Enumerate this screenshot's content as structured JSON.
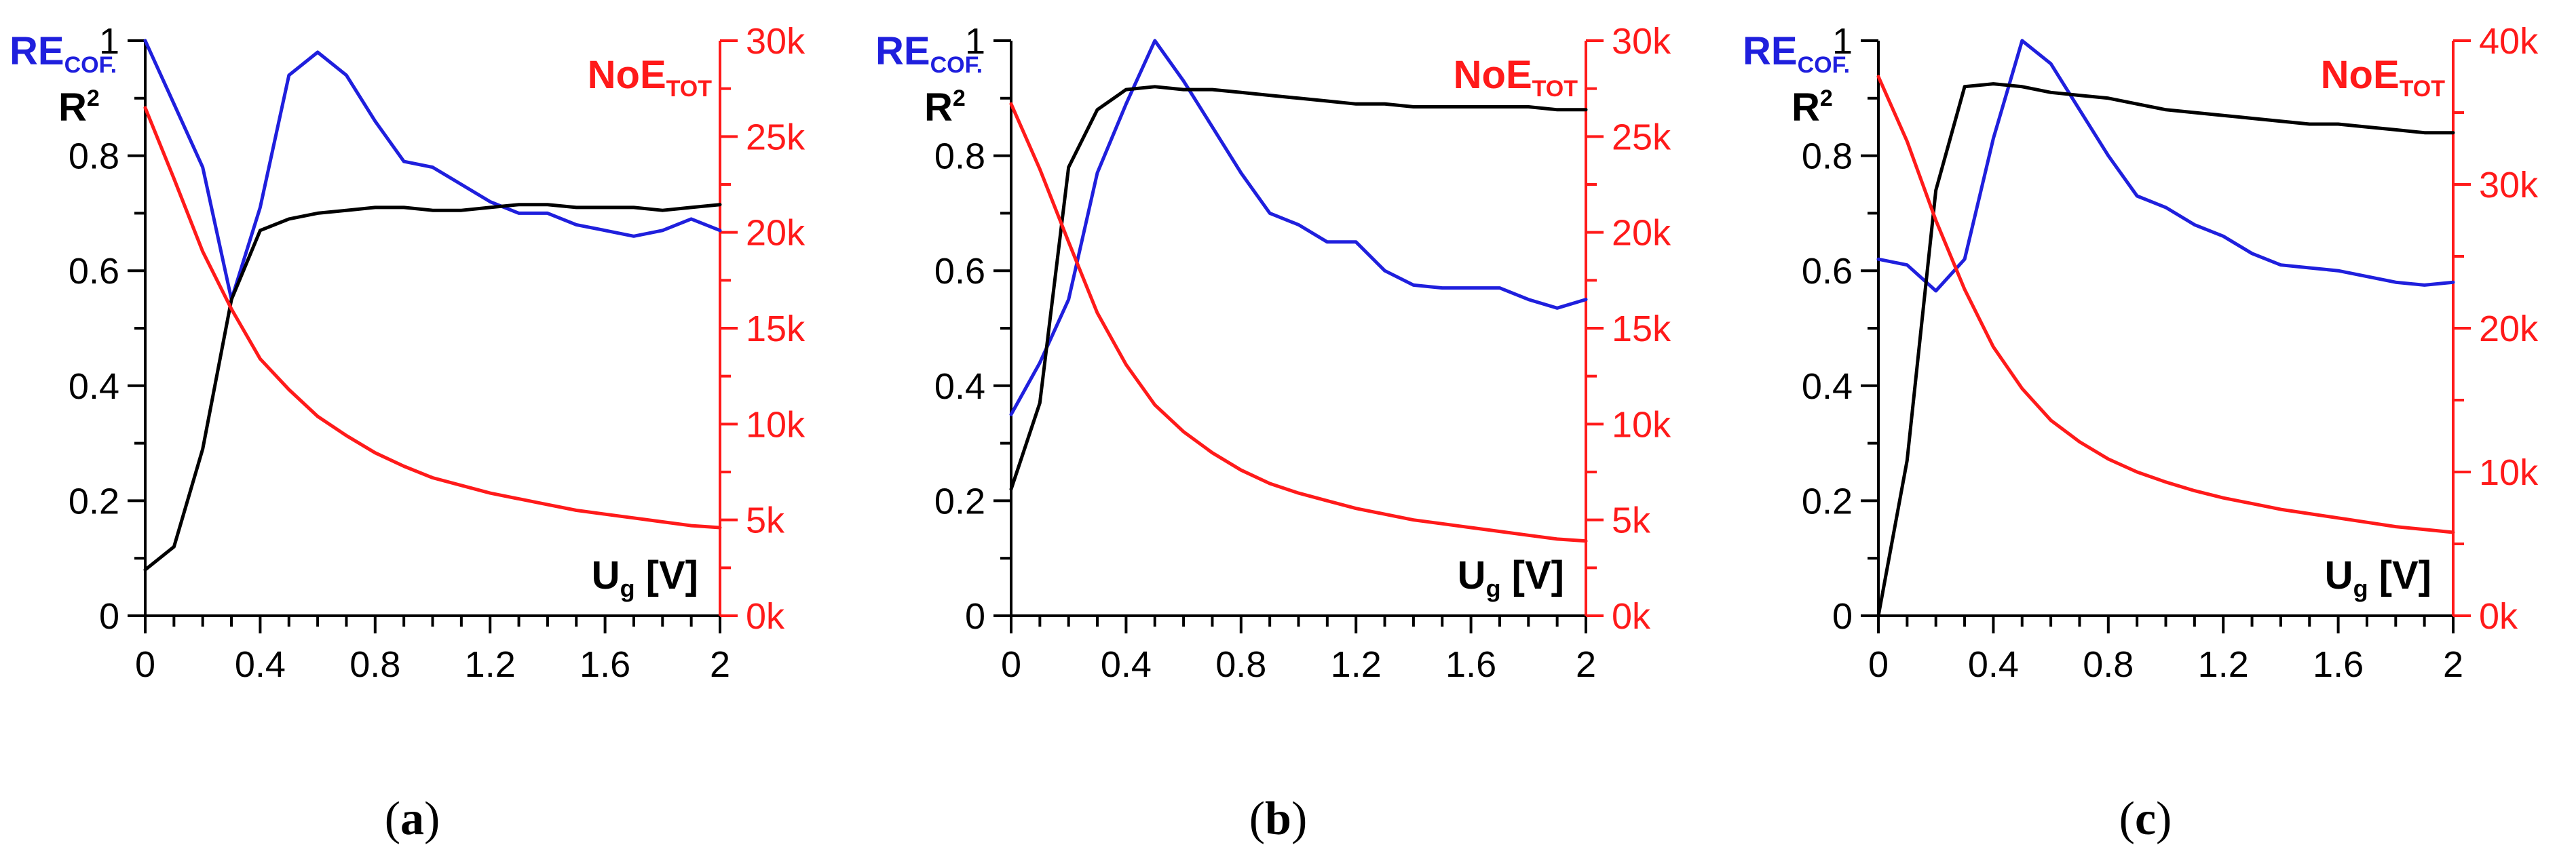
{
  "colors": {
    "black": "#000000",
    "blue": "#1f1fdd",
    "red": "#ff1a1a"
  },
  "chart_data": [
    {
      "type": "line",
      "panel": "a",
      "caption": {
        "open": "(",
        "letter": "a",
        "close": ")"
      },
      "title_left": {
        "main": "RE",
        "sub": "COF."
      },
      "title_left2": {
        "main": "R",
        "sup": "2"
      },
      "title_right": {
        "main": "NoE",
        "sub": "TOT"
      },
      "x_title": {
        "main": "U",
        "sub": "g",
        "unit": " [V]"
      },
      "xlim": [
        0,
        2
      ],
      "ylim_left": [
        0,
        1
      ],
      "ylim_right": [
        0,
        30000
      ],
      "x_ticks": [
        "0",
        "0.4",
        "0.8",
        "1.2",
        "1.6",
        "2"
      ],
      "y_left_ticks": [
        "0",
        "0.2",
        "0.4",
        "0.6",
        "0.8",
        "1"
      ],
      "y_right_ticks": [
        "0k",
        "5k",
        "10k",
        "15k",
        "20k",
        "25k",
        "30k"
      ],
      "x": [
        0,
        0.1,
        0.2,
        0.3,
        0.4,
        0.5,
        0.6,
        0.7,
        0.8,
        0.9,
        1.0,
        1.1,
        1.2,
        1.3,
        1.4,
        1.5,
        1.6,
        1.7,
        1.8,
        1.9,
        2.0
      ],
      "series": [
        {
          "name": "RE_COF.",
          "axis": "left",
          "color": "blue",
          "values": [
            1.0,
            0.89,
            0.78,
            0.55,
            0.71,
            0.94,
            0.98,
            0.94,
            0.86,
            0.79,
            0.78,
            0.75,
            0.72,
            0.7,
            0.7,
            0.68,
            0.67,
            0.66,
            0.67,
            0.69,
            0.67
          ]
        },
        {
          "name": "R2",
          "axis": "left",
          "color": "black",
          "values": [
            0.08,
            0.12,
            0.29,
            0.55,
            0.67,
            0.69,
            0.7,
            0.705,
            0.71,
            0.71,
            0.705,
            0.705,
            0.71,
            0.715,
            0.715,
            0.71,
            0.71,
            0.71,
            0.705,
            0.71,
            0.715
          ]
        },
        {
          "name": "NoE_TOT",
          "axis": "right",
          "color": "red",
          "values": [
            26500,
            22800,
            19000,
            16000,
            13400,
            11800,
            10400,
            9400,
            8500,
            7800,
            7200,
            6800,
            6400,
            6100,
            5800,
            5500,
            5300,
            5100,
            4900,
            4700,
            4600
          ]
        }
      ]
    },
    {
      "type": "line",
      "panel": "b",
      "caption": {
        "open": "(",
        "letter": "b",
        "close": ")"
      },
      "title_left": {
        "main": "RE",
        "sub": "COF."
      },
      "title_left2": {
        "main": "R",
        "sup": "2"
      },
      "title_right": {
        "main": "NoE",
        "sub": "TOT"
      },
      "x_title": {
        "main": "U",
        "sub": "g",
        "unit": " [V]"
      },
      "xlim": [
        0,
        2
      ],
      "ylim_left": [
        0,
        1
      ],
      "ylim_right": [
        0,
        30000
      ],
      "x_ticks": [
        "0",
        "0.4",
        "0.8",
        "1.2",
        "1.6",
        "2"
      ],
      "y_left_ticks": [
        "0",
        "0.2",
        "0.4",
        "0.6",
        "0.8",
        "1"
      ],
      "y_right_ticks": [
        "0k",
        "5k",
        "10k",
        "15k",
        "20k",
        "25k",
        "30k"
      ],
      "x": [
        0,
        0.1,
        0.2,
        0.3,
        0.4,
        0.5,
        0.6,
        0.7,
        0.8,
        0.9,
        1.0,
        1.1,
        1.2,
        1.3,
        1.4,
        1.5,
        1.6,
        1.7,
        1.8,
        1.9,
        2.0
      ],
      "series": [
        {
          "name": "RE_COF.",
          "axis": "left",
          "color": "blue",
          "values": [
            0.35,
            0.44,
            0.55,
            0.77,
            0.89,
            1.0,
            0.93,
            0.85,
            0.77,
            0.7,
            0.68,
            0.65,
            0.65,
            0.6,
            0.575,
            0.57,
            0.57,
            0.57,
            0.55,
            0.535,
            0.55
          ]
        },
        {
          "name": "R2",
          "axis": "left",
          "color": "black",
          "values": [
            0.22,
            0.37,
            0.78,
            0.88,
            0.915,
            0.92,
            0.915,
            0.915,
            0.91,
            0.905,
            0.9,
            0.895,
            0.89,
            0.89,
            0.885,
            0.885,
            0.885,
            0.885,
            0.885,
            0.88,
            0.88
          ]
        },
        {
          "name": "NoE_TOT",
          "axis": "right",
          "color": "red",
          "values": [
            26700,
            23300,
            19500,
            15800,
            13100,
            11000,
            9600,
            8500,
            7600,
            6900,
            6400,
            6000,
            5600,
            5300,
            5000,
            4800,
            4600,
            4400,
            4200,
            4000,
            3900
          ]
        }
      ]
    },
    {
      "type": "line",
      "panel": "c",
      "caption": {
        "open": "(",
        "letter": "c",
        "close": ")"
      },
      "title_left": {
        "main": "RE",
        "sub": "COF."
      },
      "title_left2": {
        "main": "R",
        "sup": "2"
      },
      "title_right": {
        "main": "NoE",
        "sub": "TOT"
      },
      "x_title": {
        "main": "U",
        "sub": "g",
        "unit": " [V]"
      },
      "xlim": [
        0,
        2
      ],
      "ylim_left": [
        0,
        1
      ],
      "ylim_right": [
        0,
        40000
      ],
      "x_ticks": [
        "0",
        "0.4",
        "0.8",
        "1.2",
        "1.6",
        "2"
      ],
      "y_left_ticks": [
        "0",
        "0.2",
        "0.4",
        "0.6",
        "0.8",
        "1"
      ],
      "y_right_ticks": [
        "0k",
        "10k",
        "20k",
        "30k",
        "40k"
      ],
      "x": [
        0,
        0.1,
        0.2,
        0.3,
        0.4,
        0.5,
        0.6,
        0.7,
        0.8,
        0.9,
        1.0,
        1.1,
        1.2,
        1.3,
        1.4,
        1.5,
        1.6,
        1.7,
        1.8,
        1.9,
        2.0
      ],
      "series": [
        {
          "name": "RE_COF.",
          "axis": "left",
          "color": "blue",
          "values": [
            0.62,
            0.61,
            0.565,
            0.62,
            0.83,
            1.0,
            0.96,
            0.88,
            0.8,
            0.73,
            0.71,
            0.68,
            0.66,
            0.63,
            0.61,
            0.605,
            0.6,
            0.59,
            0.58,
            0.575,
            0.58
          ]
        },
        {
          "name": "R2",
          "axis": "left",
          "color": "black",
          "values": [
            0.0,
            0.27,
            0.74,
            0.92,
            0.925,
            0.92,
            0.91,
            0.905,
            0.9,
            0.89,
            0.88,
            0.875,
            0.87,
            0.865,
            0.86,
            0.855,
            0.855,
            0.85,
            0.845,
            0.84,
            0.84
          ]
        },
        {
          "name": "NoE_TOT",
          "axis": "right",
          "color": "red",
          "values": [
            37500,
            33000,
            27500,
            22700,
            18700,
            15800,
            13600,
            12100,
            10900,
            10000,
            9300,
            8700,
            8200,
            7800,
            7400,
            7100,
            6800,
            6500,
            6200,
            6000,
            5800
          ]
        }
      ]
    }
  ]
}
